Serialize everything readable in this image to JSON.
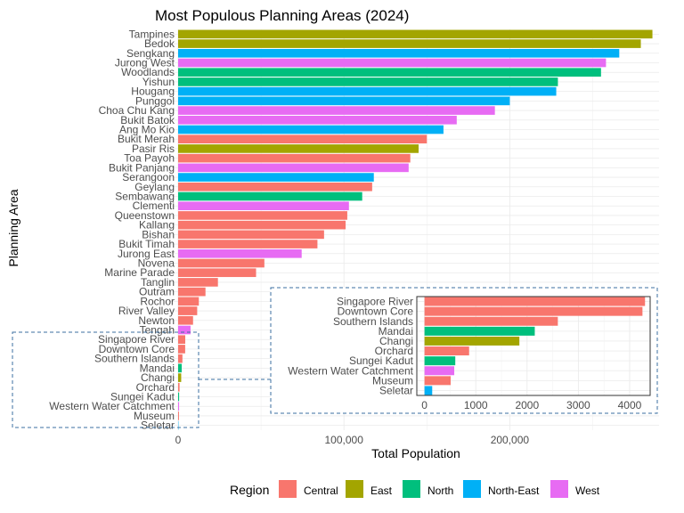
{
  "chart_data": {
    "type": "bar",
    "orientation": "horizontal",
    "title": "Most Populous Planning Areas (2024)",
    "xlabel": "Total Population",
    "ylabel": "Planning Area",
    "xlim": [
      0,
      290000
    ],
    "xticks": [
      0,
      100000,
      200000
    ],
    "xtick_labels": [
      "0",
      "100,000",
      "200,000"
    ],
    "grid": true,
    "legend_position": "bottom",
    "legend_title": "Region",
    "regions": [
      {
        "name": "Central",
        "color": "#F8766D"
      },
      {
        "name": "East",
        "color": "#A3A500"
      },
      {
        "name": "North",
        "color": "#00BF7D"
      },
      {
        "name": "North-East",
        "color": "#00B0F6"
      },
      {
        "name": "West",
        "color": "#E76BF3"
      }
    ],
    "bars": [
      {
        "area": "Tampines",
        "value": 286000,
        "region": "East"
      },
      {
        "area": "Bedok",
        "value": 279000,
        "region": "East"
      },
      {
        "area": "Sengkang",
        "value": 266000,
        "region": "North-East"
      },
      {
        "area": "Jurong West",
        "value": 258000,
        "region": "West"
      },
      {
        "area": "Woodlands",
        "value": 255000,
        "region": "North"
      },
      {
        "area": "Yishun",
        "value": 229000,
        "region": "North"
      },
      {
        "area": "Hougang",
        "value": 228000,
        "region": "North-East"
      },
      {
        "area": "Punggol",
        "value": 200000,
        "region": "North-East"
      },
      {
        "area": "Choa Chu Kang",
        "value": 191000,
        "region": "West"
      },
      {
        "area": "Bukit Batok",
        "value": 168000,
        "region": "West"
      },
      {
        "area": "Ang Mo Kio",
        "value": 160000,
        "region": "North-East"
      },
      {
        "area": "Bukit Merah",
        "value": 150000,
        "region": "Central"
      },
      {
        "area": "Pasir Ris",
        "value": 145000,
        "region": "East"
      },
      {
        "area": "Toa Payoh",
        "value": 140000,
        "region": "Central"
      },
      {
        "area": "Bukit Panjang",
        "value": 139000,
        "region": "West"
      },
      {
        "area": "Serangoon",
        "value": 118000,
        "region": "North-East"
      },
      {
        "area": "Geylang",
        "value": 117000,
        "region": "Central"
      },
      {
        "area": "Sembawang",
        "value": 111000,
        "region": "North"
      },
      {
        "area": "Clementi",
        "value": 103000,
        "region": "West"
      },
      {
        "area": "Queenstown",
        "value": 102000,
        "region": "Central"
      },
      {
        "area": "Kallang",
        "value": 101000,
        "region": "Central"
      },
      {
        "area": "Bishan",
        "value": 88000,
        "region": "Central"
      },
      {
        "area": "Bukit Timah",
        "value": 84000,
        "region": "Central"
      },
      {
        "area": "Jurong East",
        "value": 74500,
        "region": "West"
      },
      {
        "area": "Novena",
        "value": 52000,
        "region": "Central"
      },
      {
        "area": "Marine Parade",
        "value": 47000,
        "region": "Central"
      },
      {
        "area": "Tanglin",
        "value": 24000,
        "region": "Central"
      },
      {
        "area": "Outram",
        "value": 16500,
        "region": "Central"
      },
      {
        "area": "Rochor",
        "value": 12500,
        "region": "Central"
      },
      {
        "area": "River Valley",
        "value": 11500,
        "region": "Central"
      },
      {
        "area": "Newton",
        "value": 9000,
        "region": "Central"
      },
      {
        "area": "Tengah",
        "value": 7500,
        "region": "West"
      },
      {
        "area": "Singapore River",
        "value": 4300,
        "region": "Central"
      },
      {
        "area": "Downtown Core",
        "value": 4250,
        "region": "Central"
      },
      {
        "area": "Southern Islands",
        "value": 2600,
        "region": "Central"
      },
      {
        "area": "Mandai",
        "value": 2150,
        "region": "North"
      },
      {
        "area": "Changi",
        "value": 1850,
        "region": "East"
      },
      {
        "area": "Orchard",
        "value": 870,
        "region": "Central"
      },
      {
        "area": "Sungei Kadut",
        "value": 600,
        "region": "North"
      },
      {
        "area": "Western Water Catchment",
        "value": 580,
        "region": "West"
      },
      {
        "area": "Museum",
        "value": 510,
        "region": "Central"
      },
      {
        "area": "Seletar",
        "value": 150,
        "region": "North-East"
      }
    ],
    "inset": {
      "type": "bar",
      "orientation": "horizontal",
      "xlim": [
        -150,
        4400
      ],
      "xticks": [
        0,
        1000,
        2000,
        3000,
        4000
      ],
      "xtick_labels": [
        "0",
        "1000",
        "2000",
        "3000",
        "4000"
      ],
      "areas": [
        "Singapore River",
        "Downtown Core",
        "Southern Islands",
        "Mandai",
        "Changi",
        "Orchard",
        "Sungei Kadut",
        "Western Water Catchment",
        "Museum",
        "Seletar"
      ]
    }
  }
}
